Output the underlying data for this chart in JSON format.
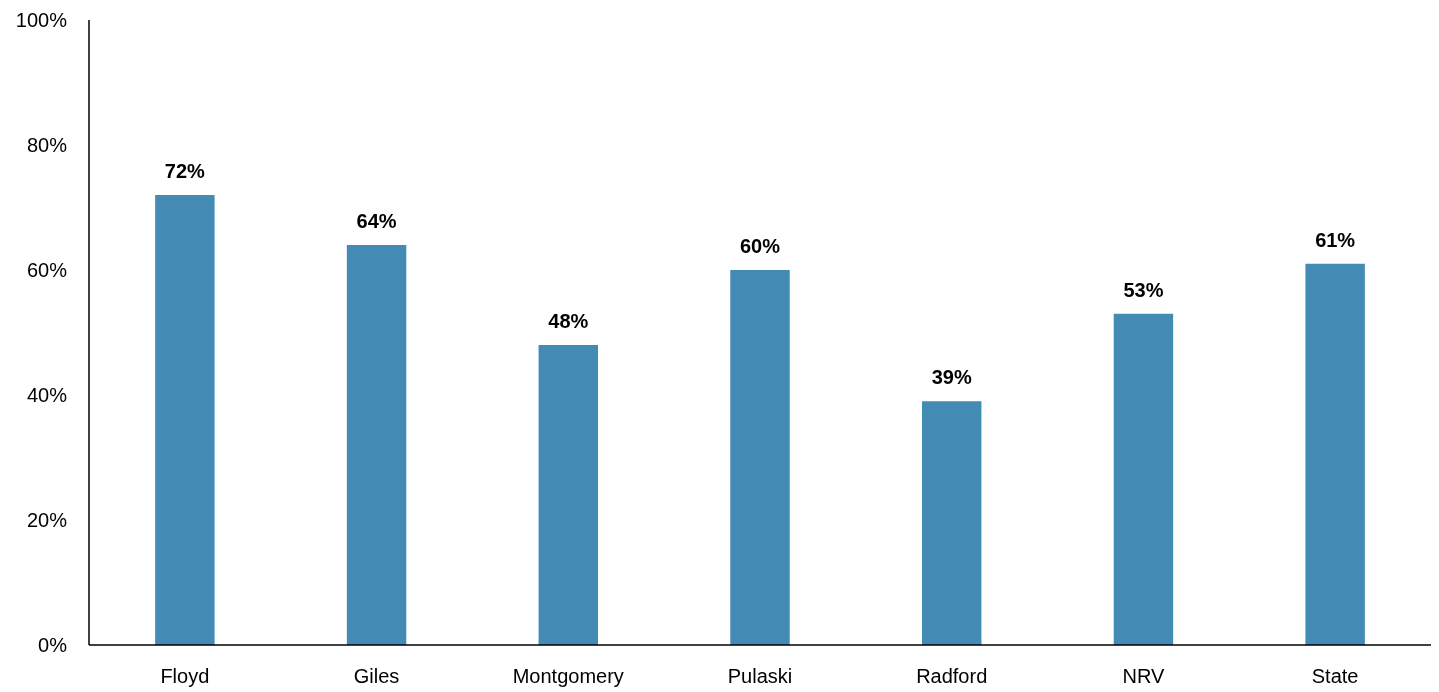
{
  "chart_data": {
    "type": "bar",
    "categories": [
      "Floyd",
      "Giles",
      "Montgomery",
      "Pulaski",
      "Radford",
      "NRV",
      "State"
    ],
    "values": [
      72,
      64,
      48,
      60,
      39,
      53,
      61
    ],
    "value_labels": [
      "72%",
      "64%",
      "48%",
      "60%",
      "39%",
      "53%",
      "61%"
    ],
    "color": "#438ab5",
    "ylim": [
      0,
      100
    ],
    "yticks": [
      {
        "value": 0,
        "label": "0%"
      },
      {
        "value": 20,
        "label": "20%"
      },
      {
        "value": 40,
        "label": "40%"
      },
      {
        "value": 60,
        "label": "60%"
      },
      {
        "value": 80,
        "label": "80%"
      },
      {
        "value": 100,
        "label": "100%"
      }
    ],
    "grid": false
  }
}
